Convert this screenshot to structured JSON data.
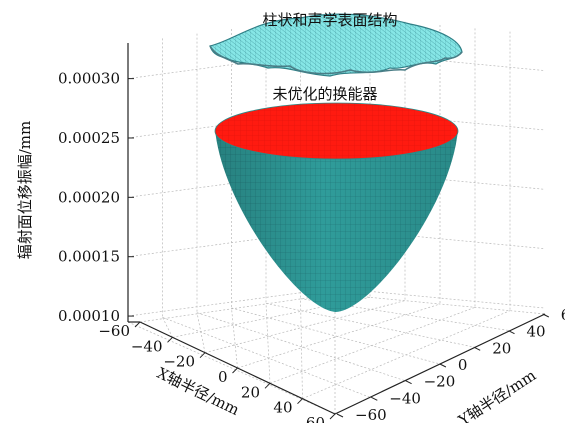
{
  "chart_data": {
    "type": "surface3d",
    "zlabel": "辐射面位移振幅/mm",
    "xlabel": "X轴半径/mm",
    "ylabel": "Y轴半径/mm",
    "xlim": [
      -60,
      60
    ],
    "ylim": [
      -60,
      60
    ],
    "zlim": [
      0.0001,
      0.00033
    ],
    "x_ticks": [
      "−60",
      "−40",
      "−20",
      "0",
      "20",
      "40",
      "60"
    ],
    "y_ticks": [
      "−60",
      "−40",
      "−20",
      "0",
      "20",
      "40",
      "60"
    ],
    "z_ticks": [
      "0.00010",
      "0.00015",
      "0.00020",
      "0.00025",
      "0.00030"
    ],
    "grid": true,
    "series": [
      {
        "name": "柱状和声学表面结构",
        "color_top": "#86e6e6",
        "color_mesh": "#3a8f96",
        "shape": "near-flat wavy disk",
        "z_range": [
          0.000317,
          0.000328
        ]
      },
      {
        "name": "未优化的换能器",
        "color_inner": "#ff1a10",
        "color_outer": "#2a9a98",
        "shape": "paraboloid cone",
        "z_min": 0.0001,
        "z_max": 0.000262
      }
    ]
  }
}
